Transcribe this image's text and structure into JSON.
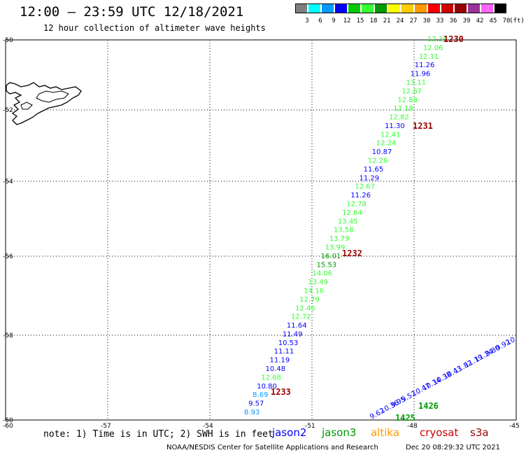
{
  "header": {
    "title": "12:00 – 23:59 UTC 12/18/2021",
    "subtitle": "12 hour collection of altimeter wave heights"
  },
  "colorbar": {
    "labels": [
      "3",
      "6",
      "9",
      "12",
      "15",
      "18",
      "21",
      "24",
      "27",
      "30",
      "33",
      "36",
      "39",
      "42",
      "45",
      "70"
    ],
    "unit": "(ft)",
    "colors": [
      "#7f7f7f",
      "#00ffff",
      "#0099ff",
      "#0000ff",
      "#00cc00",
      "#33ff33",
      "#009900",
      "#ffff00",
      "#ffcc00",
      "#ff9900",
      "#ff0000",
      "#cc0000",
      "#990000",
      "#993399",
      "#ff66ff",
      "#000000"
    ]
  },
  "map": {
    "lat_ticks": [
      "-50",
      "-52",
      "-54",
      "-56",
      "-58",
      "-60"
    ],
    "lon_ticks": [
      "-57",
      "-54",
      "-51",
      "-48",
      "-45"
    ],
    "grid": true
  },
  "tracks": [
    {
      "points": [
        {
          "v": "12.39",
          "c": "#33ff33"
        },
        {
          "v": "12.06",
          "c": "#33ff33"
        },
        {
          "v": "12.11",
          "c": "#33ff33"
        },
        {
          "v": "11.26",
          "c": "#0000ff"
        },
        {
          "v": "11.96",
          "c": "#0000ff"
        },
        {
          "v": "13.11",
          "c": "#33ff33"
        },
        {
          "v": "12.67",
          "c": "#33ff33"
        },
        {
          "v": "12.88",
          "c": "#33ff33"
        },
        {
          "v": "12.18",
          "c": "#33ff33"
        },
        {
          "v": "12.82",
          "c": "#33ff33"
        },
        {
          "v": "11.30",
          "c": "#0000ff"
        },
        {
          "v": "12.41",
          "c": "#33ff33"
        },
        {
          "v": "12.24",
          "c": "#33ff33"
        },
        {
          "v": "10.87",
          "c": "#0000ff"
        },
        {
          "v": "12.26",
          "c": "#33ff33"
        },
        {
          "v": "11.65",
          "c": "#0000ff"
        },
        {
          "v": "11.29",
          "c": "#0000ff"
        },
        {
          "v": "12.67",
          "c": "#33ff33"
        },
        {
          "v": "11.26",
          "c": "#0000ff"
        },
        {
          "v": "12.78",
          "c": "#33ff33"
        },
        {
          "v": "12.64",
          "c": "#33ff33"
        },
        {
          "v": "13.45",
          "c": "#33ff33"
        },
        {
          "v": "13.58",
          "c": "#33ff33"
        },
        {
          "v": "13.79",
          "c": "#33ff33"
        },
        {
          "v": "13.99",
          "c": "#33ff33"
        },
        {
          "v": "16.01",
          "c": "#009900"
        },
        {
          "v": "15.53",
          "c": "#009900"
        },
        {
          "v": "14.06",
          "c": "#33ff33"
        },
        {
          "v": "13.49",
          "c": "#33ff33"
        },
        {
          "v": "14.16",
          "c": "#33ff33"
        },
        {
          "v": "12.79",
          "c": "#33ff33"
        },
        {
          "v": "12.46",
          "c": "#33ff33"
        },
        {
          "v": "12.72",
          "c": "#33ff33"
        },
        {
          "v": "11.64",
          "c": "#0000ff"
        },
        {
          "v": "11.49",
          "c": "#0000ff"
        },
        {
          "v": "10.53",
          "c": "#0000ff"
        },
        {
          "v": "11.11",
          "c": "#0000ff"
        },
        {
          "v": "11.19",
          "c": "#0000ff"
        },
        {
          "v": "10.48",
          "c": "#0000ff"
        },
        {
          "v": "12.68",
          "c": "#33ff33"
        },
        {
          "v": "10.80",
          "c": "#0000ff"
        },
        {
          "v": "8.69",
          "c": "#0099ff"
        },
        {
          "v": "9.57",
          "c": "#0000ff"
        },
        {
          "v": "8.93",
          "c": "#0099ff"
        }
      ],
      "time_labels": [
        "1230",
        "1231",
        "1232",
        "1233"
      ],
      "time_color": "#990000"
    },
    {
      "points": [
        {
          "v": "9.62",
          "c": "#0000ff"
        },
        {
          "v": "10.36",
          "c": "#0000ff"
        },
        {
          "v": "9.95",
          "c": "#0000ff"
        },
        {
          "v": "9.52",
          "c": "#0000ff"
        },
        {
          "v": "10.47",
          "c": "#0000ff"
        },
        {
          "v": "10.34",
          "c": "#0000ff"
        },
        {
          "v": "10.38",
          "c": "#0000ff"
        },
        {
          "v": "10.43",
          "c": "#0000ff"
        },
        {
          "v": "11.82",
          "c": "#0000ff"
        },
        {
          "v": "11.19",
          "c": "#0000ff"
        },
        {
          "v": "11.24",
          "c": "#0000ff"
        },
        {
          "v": "9.80",
          "c": "#0000ff"
        },
        {
          "v": "9.92",
          "c": "#0000ff"
        },
        {
          "v": "10",
          "c": "#0000ff"
        }
      ],
      "time_labels": [
        "1425",
        "1426"
      ],
      "time_color": "#009900"
    }
  ],
  "legend": {
    "note": "note: 1) Time is in UTC; 2) SWH is in feet",
    "satellites": [
      {
        "name": "jason2",
        "color": "#0000ff"
      },
      {
        "name": "jason3",
        "color": "#009900"
      },
      {
        "name": "altika",
        "color": "#ff9900"
      },
      {
        "name": "cryosat",
        "color": "#cc0000"
      },
      {
        "name": "s3a",
        "color": "#990000"
      }
    ]
  },
  "footer": {
    "credit": "NOAA/NESDIS Center for Satellite Applications and Research",
    "timestamp": "Dec 20 08:29:32 UTC 2021"
  }
}
